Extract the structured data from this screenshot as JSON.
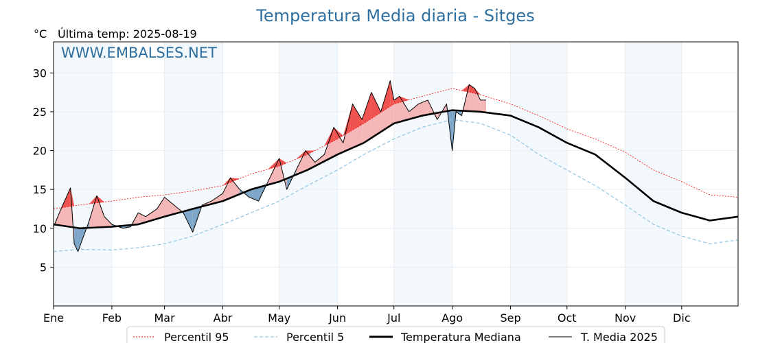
{
  "chart_data": {
    "type": "line",
    "title": "Temperatura Media diaria - Sitges",
    "unit_label": "°C",
    "last_temp_label": "Última temp: 2025-08-19",
    "watermark": "WWW.EMBALSES.NET",
    "ylim": [
      0,
      34
    ],
    "yticks": [
      5,
      10,
      15,
      20,
      25,
      30
    ],
    "months": [
      "Ene",
      "Feb",
      "Mar",
      "Abr",
      "May",
      "Jun",
      "Jul",
      "Ago",
      "Sep",
      "Oct",
      "Nov",
      "Dic"
    ],
    "month_start_days": [
      1,
      32,
      60,
      91,
      121,
      152,
      182,
      213,
      244,
      274,
      305,
      335
    ],
    "days_in_year": 365,
    "grid": true,
    "alternating_month_shading": true,
    "legend_position": "bottom-center",
    "fill_colors": {
      "above_median": "#f4b6b6",
      "above_p95": "#ef5350",
      "below_median": "#7ea6c8"
    },
    "series": [
      {
        "name": "Percentil 95",
        "color": "#ff0000",
        "style": "dotted",
        "x": [
          1,
          15,
          32,
          46,
          60,
          75,
          91,
          106,
          121,
          136,
          152,
          166,
          182,
          197,
          213,
          228,
          244,
          259,
          274,
          289,
          305,
          320,
          335,
          350,
          365
        ],
        "y": [
          12.5,
          13.0,
          13.5,
          14.0,
          14.3,
          14.8,
          15.5,
          17.0,
          18.0,
          19.5,
          21.5,
          23.5,
          26.0,
          27.0,
          28.0,
          27.2,
          26.0,
          24.5,
          22.8,
          21.5,
          19.8,
          17.5,
          16.0,
          14.3,
          14.0
        ]
      },
      {
        "name": "Percentil 5",
        "color": "#8fc4e0",
        "style": "dashed",
        "x": [
          1,
          15,
          32,
          46,
          60,
          75,
          91,
          106,
          121,
          136,
          152,
          166,
          182,
          197,
          213,
          228,
          244,
          259,
          274,
          289,
          305,
          320,
          335,
          350,
          365
        ],
        "y": [
          7.0,
          7.3,
          7.2,
          7.5,
          8.0,
          9.0,
          10.5,
          12.0,
          13.5,
          15.5,
          17.5,
          19.5,
          21.5,
          23.0,
          24.0,
          23.5,
          22.0,
          19.5,
          17.5,
          15.5,
          13.0,
          10.5,
          9.0,
          8.0,
          8.5
        ]
      },
      {
        "name": "Temperatura Mediana",
        "color": "#000000",
        "style": "thick",
        "x": [
          1,
          15,
          32,
          46,
          60,
          75,
          91,
          106,
          121,
          136,
          152,
          166,
          182,
          197,
          213,
          228,
          244,
          259,
          274,
          289,
          305,
          320,
          335,
          350,
          365
        ],
        "y": [
          10.5,
          10.0,
          10.2,
          10.5,
          11.5,
          12.5,
          13.5,
          15.0,
          16.0,
          17.5,
          19.5,
          21.0,
          23.5,
          24.5,
          25.2,
          25.0,
          24.5,
          23.0,
          21.0,
          19.5,
          16.5,
          13.5,
          12.0,
          11.0,
          11.5
        ]
      },
      {
        "name": "T. Media 2025",
        "color": "#000000",
        "style": "thin",
        "x": [
          1,
          5,
          10,
          12,
          14,
          20,
          24,
          28,
          32,
          38,
          42,
          46,
          50,
          56,
          60,
          65,
          70,
          75,
          80,
          85,
          91,
          95,
          100,
          105,
          110,
          115,
          121,
          125,
          130,
          135,
          140,
          145,
          150,
          155,
          160,
          165,
          170,
          175,
          180,
          182,
          185,
          190,
          195,
          200,
          205,
          210,
          213,
          215,
          218,
          222,
          225,
          228,
          231
        ],
        "y": [
          10.2,
          12.5,
          15.2,
          8.0,
          7.0,
          11.0,
          14.2,
          11.5,
          10.5,
          10.0,
          10.2,
          12.0,
          11.5,
          12.5,
          14.0,
          13.0,
          12.0,
          9.5,
          13.0,
          13.5,
          14.5,
          16.5,
          15.0,
          14.0,
          13.5,
          16.0,
          19.0,
          15.0,
          17.5,
          20.0,
          18.5,
          19.5,
          23.0,
          21.0,
          26.0,
          24.0,
          27.5,
          25.0,
          29.0,
          26.5,
          27.0,
          25.0,
          26.0,
          26.5,
          24.0,
          26.0,
          20.0,
          25.0,
          24.5,
          28.5,
          28.0,
          26.5,
          26.5
        ]
      }
    ]
  }
}
